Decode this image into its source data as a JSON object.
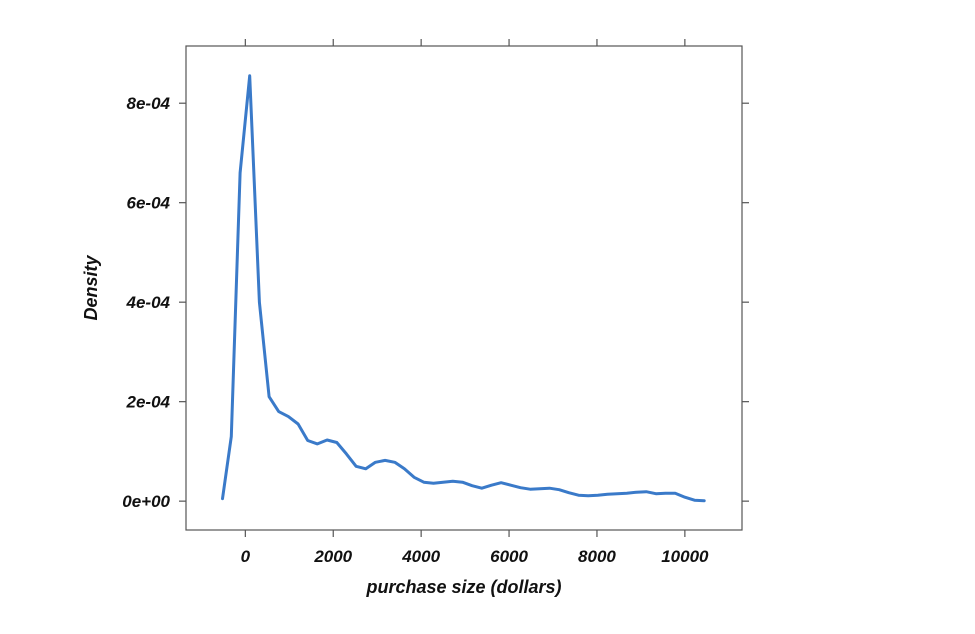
{
  "chart_data": {
    "type": "line",
    "title": "",
    "xlabel": "purchase size (dollars)",
    "ylabel": "Density",
    "xlim": [
      -1350,
      11300
    ],
    "ylim": [
      -5.8e-05,
      0.000915
    ],
    "x_ticks": [
      0,
      2000,
      4000,
      6000,
      8000,
      10000
    ],
    "x_tick_labels": [
      "0",
      "2000",
      "4000",
      "6000",
      "8000",
      "10000"
    ],
    "y_ticks": [
      0,
      0.0002,
      0.0004,
      0.0006,
      0.0008
    ],
    "y_tick_labels": [
      "0e+00",
      "2e-04",
      "4e-04",
      "6e-04",
      "8e-04"
    ],
    "grid": false,
    "line_color": "#3a7ac9",
    "series": [
      {
        "x": [
          -520,
          -320,
          -120,
          100,
          320,
          540,
          760,
          980,
          1200,
          1420,
          1640,
          1860,
          2080,
          2300,
          2520,
          2740,
          2960,
          3180,
          3400,
          3620,
          3840,
          4060,
          4280,
          4500,
          4720,
          4940,
          5160,
          5380,
          5600,
          5820,
          6040,
          6260,
          6480,
          6700,
          6920,
          7140,
          7360,
          7580,
          7800,
          8020,
          8240,
          8460,
          8680,
          8900,
          9120,
          9340,
          9560,
          9780,
          10000,
          10220,
          10440
        ],
        "y": [
          5e-06,
          0.00013,
          0.00066,
          0.000855,
          0.0004,
          0.00021,
          0.00018,
          0.00017,
          0.000155,
          0.000122,
          0.000115,
          0.000123,
          0.000118,
          9.5e-05,
          7e-05,
          6.5e-05,
          7.8e-05,
          8.2e-05,
          7.8e-05,
          6.5e-05,
          4.8e-05,
          3.8e-05,
          3.6e-05,
          3.8e-05,
          4e-05,
          3.8e-05,
          3.1e-05,
          2.6e-05,
          3.2e-05,
          3.7e-05,
          3.2e-05,
          2.7e-05,
          2.4e-05,
          2.5e-05,
          2.6e-05,
          2.3e-05,
          1.7e-05,
          1.2e-05,
          1.1e-05,
          1.2e-05,
          1.4e-05,
          1.5e-05,
          1.6e-05,
          1.8e-05,
          1.9e-05,
          1.5e-05,
          1.6e-05,
          1.6e-05,
          8e-06,
          2e-06,
          1e-06
        ]
      }
    ]
  }
}
